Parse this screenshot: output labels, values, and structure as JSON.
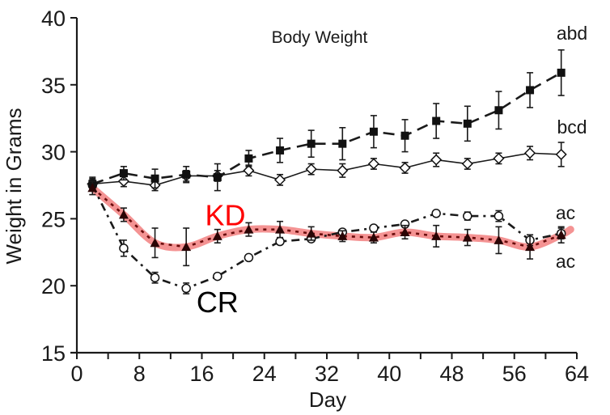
{
  "chart_data": {
    "type": "line",
    "title": "Body Weight",
    "xlabel": "Day",
    "ylabel": "Weight in Grams",
    "xlim": [
      0,
      64
    ],
    "ylim": [
      15,
      40
    ],
    "x_ticks": [
      0,
      8,
      16,
      24,
      32,
      40,
      48,
      56,
      64
    ],
    "x_tick_labels": [
      "0",
      "8",
      "16",
      "24",
      "32",
      "40",
      "48",
      "56",
      "64"
    ],
    "x_minor_tick_step": 4,
    "y_ticks": [
      15,
      20,
      25,
      30,
      35,
      40
    ],
    "y_tick_labels": [
      "15",
      "20",
      "25",
      "30",
      "35",
      "40"
    ],
    "grid": false,
    "legend": "none",
    "x": [
      2,
      6,
      10,
      14,
      18,
      22,
      26,
      30,
      34,
      38,
      42,
      46,
      50,
      54,
      58,
      62
    ],
    "series": [
      {
        "name": "filled-square",
        "marker": "square-filled",
        "line_style": "dashed",
        "significance": "abd",
        "values": [
          27.6,
          28.4,
          28.0,
          28.3,
          28.1,
          29.5,
          30.1,
          30.6,
          30.6,
          31.5,
          31.2,
          32.3,
          32.1,
          33.1,
          34.6,
          35.9
        ],
        "errors": [
          0.5,
          0.5,
          0.7,
          0.6,
          1.0,
          0.6,
          0.9,
          1.0,
          1.2,
          1.2,
          1.2,
          1.3,
          1.3,
          1.4,
          1.3,
          1.7
        ]
      },
      {
        "name": "open-diamond",
        "marker": "diamond-open",
        "line_style": "solid",
        "significance": "bcd",
        "values": [
          27.6,
          27.8,
          27.5,
          28.2,
          28.2,
          28.6,
          27.9,
          28.7,
          28.6,
          29.1,
          28.8,
          29.4,
          29.1,
          29.5,
          29.9,
          29.8
        ],
        "errors": [
          0.4,
          0.4,
          0.4,
          0.4,
          0.4,
          0.4,
          0.4,
          0.4,
          0.5,
          0.4,
          0.4,
          0.5,
          0.4,
          0.4,
          0.5,
          0.9
        ]
      },
      {
        "name": "KD",
        "marker": "triangle-filled",
        "line_style": "dotted",
        "highlight_color": "#f28080",
        "significance": "ac",
        "values": [
          27.3,
          25.3,
          23.2,
          22.9,
          23.7,
          24.2,
          24.2,
          23.9,
          23.7,
          23.6,
          24.0,
          23.7,
          23.6,
          23.4,
          22.9,
          23.8
        ],
        "errors": [
          0.5,
          0.5,
          1.1,
          1.4,
          0.5,
          0.5,
          0.6,
          0.5,
          0.4,
          0.4,
          0.5,
          0.8,
          0.6,
          1.0,
          0.9,
          0.6
        ]
      },
      {
        "name": "CR",
        "marker": "circle-open",
        "line_style": "dash-dot",
        "significance": "ac",
        "values": [
          27.5,
          22.8,
          20.6,
          19.8,
          20.7,
          22.1,
          23.3,
          23.5,
          24.0,
          24.3,
          24.6,
          25.4,
          25.2,
          25.2,
          23.4,
          23.9
        ],
        "errors": [
          0.4,
          0.6,
          0.4,
          0.4,
          0.2,
          0.2,
          0.2,
          0.2,
          0.2,
          0.2,
          0.2,
          0.2,
          0.3,
          0.4,
          0.4,
          0.4
        ]
      }
    ],
    "annotations": [
      {
        "text": "KD",
        "color": "#ff0000",
        "x": 19,
        "y": 25.3
      },
      {
        "text": "CR",
        "color": "#000000",
        "x": 18,
        "y": 18.8
      }
    ]
  }
}
